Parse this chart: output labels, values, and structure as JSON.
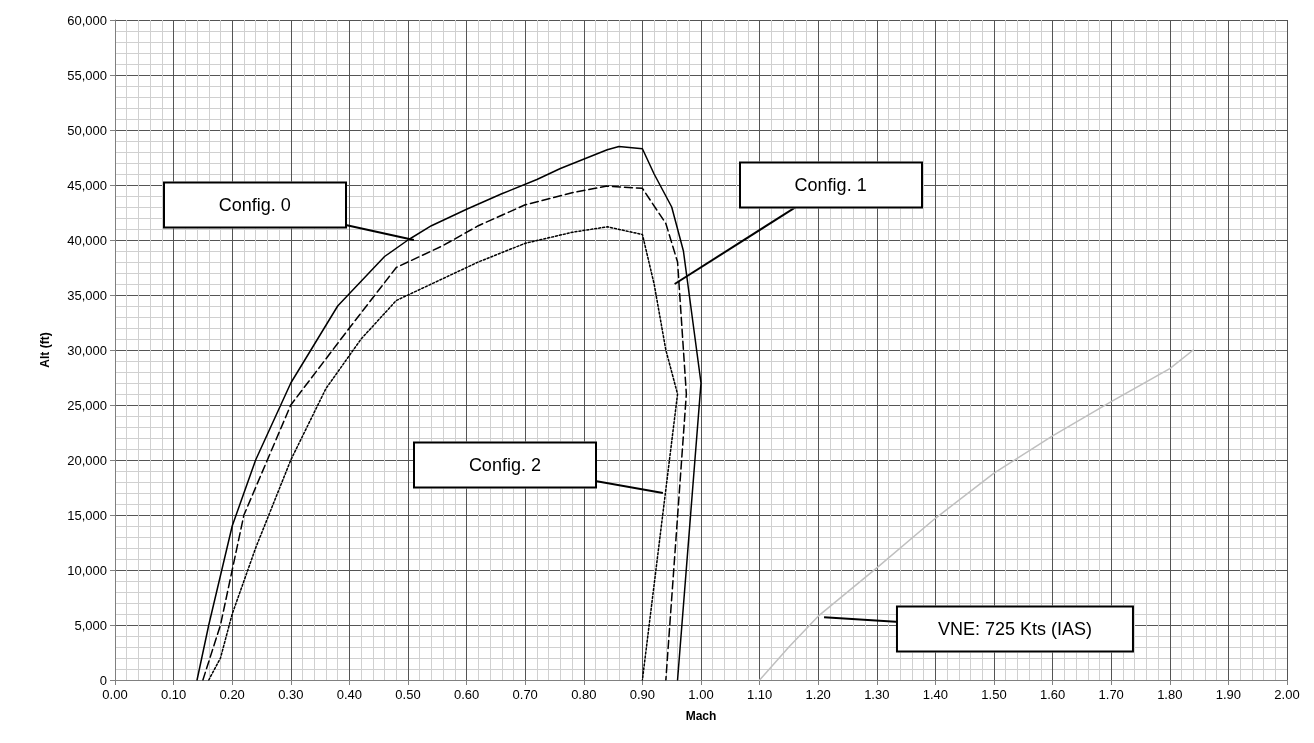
{
  "chart_data": {
    "type": "line",
    "xlabel": "Mach",
    "ylabel": "Alt (ft)",
    "xlim": [
      0,
      2
    ],
    "xticks": [
      {
        "value": 0,
        "label": "0.00"
      },
      {
        "value": 0.1,
        "label": "0.10"
      },
      {
        "value": 0.2,
        "label": "0.20"
      },
      {
        "value": 0.3,
        "label": "0.30"
      },
      {
        "value": 0.4,
        "label": "0.40"
      },
      {
        "value": 0.5,
        "label": "0.50"
      },
      {
        "value": 0.6,
        "label": "0.60"
      },
      {
        "value": 0.7,
        "label": "0.70"
      },
      {
        "value": 0.8,
        "label": "0.80"
      },
      {
        "value": 0.9,
        "label": "0.90"
      },
      {
        "value": 1,
        "label": "1.00"
      },
      {
        "value": 1.1,
        "label": "1.10"
      },
      {
        "value": 1.2,
        "label": "1.20"
      },
      {
        "value": 1.3,
        "label": "1.30"
      },
      {
        "value": 1.4,
        "label": "1.40"
      },
      {
        "value": 1.5,
        "label": "1.50"
      },
      {
        "value": 1.6,
        "label": "1.60"
      },
      {
        "value": 1.7,
        "label": "1.70"
      },
      {
        "value": 1.8,
        "label": "1.80"
      },
      {
        "value": 1.9,
        "label": "1.90"
      },
      {
        "value": 2,
        "label": "2.00"
      }
    ],
    "ylim": [
      0,
      60000
    ],
    "yticks": [
      0,
      {
        "value": 5000,
        "label": "5,000"
      },
      {
        "value": 10000,
        "label": "10,000"
      },
      {
        "value": 15000,
        "label": "15,000"
      },
      {
        "value": 20000,
        "label": "20,000"
      },
      {
        "value": 25000,
        "label": "25,000"
      },
      {
        "value": 30000,
        "label": "30,000"
      },
      {
        "value": 35000,
        "label": "35,000"
      },
      {
        "value": 40000,
        "label": "40,000"
      },
      {
        "value": 45000,
        "label": "45,000"
      },
      {
        "value": 50000,
        "label": "50,000"
      },
      {
        "value": 55000,
        "label": "55,000"
      },
      {
        "value": 60000,
        "label": "60,000"
      }
    ],
    "grid": true,
    "marker": "none",
    "series": [
      {
        "color": "#000000",
        "line_style": "solid",
        "x": [
          0.14,
          0.16,
          0.2,
          0.24,
          0.3,
          0.38,
          0.46,
          0.5,
          0.54,
          0.6,
          0.66,
          0.72,
          0.76,
          0.84,
          0.86,
          0.9,
          0.92,
          0.95,
          0.97,
          0.98,
          1.0,
          0.96
        ],
        "values": [
          0,
          5000,
          14000,
          20000,
          27000,
          34000,
          38500,
          40000,
          41300,
          42800,
          44200,
          45500,
          46500,
          48200,
          48500,
          48300,
          46000,
          43000,
          39000,
          35000,
          27000,
          0
        ]
      },
      {
        "color": "#000000",
        "line_style": "dashed",
        "x": [
          0.15,
          0.18,
          0.22,
          0.26,
          0.3,
          0.4,
          0.48,
          0.56,
          0.62,
          0.7,
          0.78,
          0.84,
          0.9,
          0.94,
          0.96,
          0.975,
          0.94
        ],
        "values": [
          0,
          5000,
          15000,
          20000,
          25000,
          32000,
          37500,
          39500,
          41300,
          43200,
          44300,
          44900,
          44700,
          41500,
          38000,
          26000,
          0
        ]
      },
      {
        "color": "#000000",
        "line_style": "dotted",
        "x": [
          0.16,
          0.18,
          0.2,
          0.24,
          0.3,
          0.36,
          0.42,
          0.48,
          0.56,
          0.62,
          0.7,
          0.78,
          0.84,
          0.9,
          0.92,
          0.94,
          0.96,
          0.9
        ],
        "values": [
          0,
          2000,
          6000,
          12000,
          20000,
          26500,
          31000,
          34500,
          36500,
          38000,
          39700,
          40700,
          41200,
          40500,
          36000,
          30000,
          26000,
          0
        ]
      },
      {
        "color": "#bfbfbf",
        "line_style": "solid",
        "x": [
          1.1,
          1.15,
          1.2,
          1.3,
          1.4,
          1.5,
          1.6,
          1.7,
          1.8,
          1.84
        ],
        "values": [
          0,
          3000,
          5800,
          10200,
          14700,
          18800,
          22200,
          25300,
          28300,
          30000
        ]
      }
    ],
    "annotations": [
      {
        "text": "Config. 0",
        "x": 0.51,
        "y": 40000
      },
      {
        "text": "Config. 1",
        "x": 0.955,
        "y": 36000
      },
      {
        "text": "Config. 2",
        "x": 0.935,
        "y": 17000
      },
      {
        "text": "VNE: 725 Kts (IAS)",
        "x": 1.21,
        "y": 5700
      }
    ]
  }
}
